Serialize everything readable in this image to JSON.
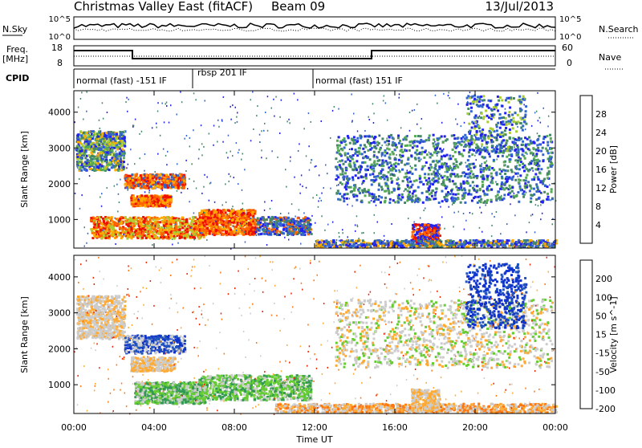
{
  "header": {
    "station": "Christmas Valley East (fitACF)",
    "beam": "Beam 09",
    "date": "13/Jul/2013"
  },
  "panels": {
    "nsky_label": "N.Sky",
    "nsky_ticks": [
      "10^5",
      "10^0"
    ],
    "nsearch_label": "N.Search",
    "nsearch_ticks": [
      "10^5",
      "10^0"
    ],
    "freq_label": "Freq.",
    "freq_unit": "[MHz]",
    "freq_ticks": [
      "18",
      "8"
    ],
    "nave_label": "Nave",
    "nave_ticks": [
      "60",
      "0"
    ],
    "cpid_label": "CPID",
    "cpid_segments": [
      {
        "label": "normal (fast) -151 IF",
        "start_h": 0,
        "end_h": 6
      },
      {
        "label": "rbsp 201 IF",
        "start_h": 6,
        "end_h": 12
      },
      {
        "label": "normal (fast) 151 IF",
        "start_h": 12,
        "end_h": 24
      }
    ]
  },
  "chart_data": [
    {
      "type": "heatmap",
      "name": "power-panel",
      "ylabel": "Slant Range [km]",
      "yticks": [
        "1000",
        "2000",
        "3000",
        "4000"
      ],
      "ylim": [
        200,
        4600
      ],
      "xlabel": "Time UT",
      "xticks": [
        "00:00",
        "04:00",
        "08:00",
        "12:00",
        "16:00",
        "20:00",
        "00:00"
      ],
      "xlim_hours": [
        0,
        24
      ],
      "colorbar_label": "Power [dB]",
      "colorbar_ticks": [
        "4",
        "8",
        "12",
        "16",
        "20",
        "24",
        "28"
      ],
      "colorbar_colors": [
        "#2222ee",
        "#3366cc",
        "#448866",
        "#55aa55",
        "#aacc33",
        "#ffaa00",
        "#ff6600",
        "#ee1100"
      ],
      "colorbar_range": [
        0,
        32
      ]
    },
    {
      "type": "heatmap",
      "name": "velocity-panel",
      "ylabel": "Slant Range [km]",
      "yticks": [
        "1000",
        "2000",
        "3000",
        "4000"
      ],
      "ylim": [
        200,
        4600
      ],
      "xlabel": "Time UT",
      "xticks": [
        "00:00",
        "04:00",
        "08:00",
        "12:00",
        "16:00",
        "20:00",
        "00:00"
      ],
      "xlim_hours": [
        0,
        24
      ],
      "colorbar_label": "Velocity [m s^-1]",
      "colorbar_ticks": [
        "200",
        "100",
        "50",
        "15",
        "-15",
        "-50",
        "-100",
        "-200"
      ],
      "colorbar_colors": [
        "#1133cc",
        "#2255bb",
        "#339955",
        "#66cc33",
        "#cccccc",
        "#ffaa33",
        "#ff7711",
        "#ee2200"
      ],
      "colorbar_range": [
        -250,
        250
      ]
    }
  ],
  "colors": {
    "frame": "#000000",
    "ground_scatter": "#cccccc"
  }
}
